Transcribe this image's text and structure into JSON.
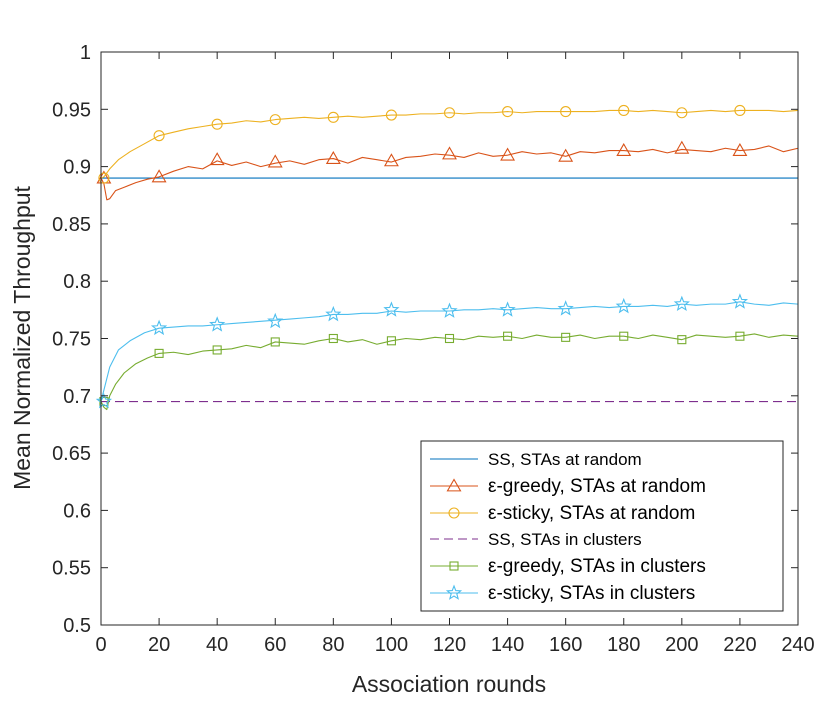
{
  "chart_data": {
    "type": "line",
    "title": "",
    "xlabel": "Association rounds",
    "ylabel": "Mean Normalized Throughput",
    "xlim": [
      0,
      240
    ],
    "ylim": [
      0.5,
      1
    ],
    "xticks": [
      0,
      20,
      40,
      60,
      80,
      100,
      120,
      140,
      160,
      180,
      200,
      220,
      240
    ],
    "yticks": [
      0.5,
      0.55,
      0.6,
      0.65,
      0.7,
      0.75,
      0.8,
      0.85,
      0.9,
      0.95,
      1
    ],
    "ytick_labels": [
      "0.5",
      "0.55",
      "0.6",
      "0.65",
      "0.7",
      "0.75",
      "0.8",
      "0.85",
      "0.9",
      "0.95",
      "1"
    ],
    "grid": false,
    "legend_position": "bottom-right",
    "series": [
      {
        "name": "SS, STAs at random",
        "color": "#0072bd",
        "dash": "solid",
        "marker": "none",
        "x": [
          0,
          240
        ],
        "y": [
          0.89,
          0.89
        ]
      },
      {
        "name": "ε-greedy, STAs at random",
        "color": "#d95319",
        "dash": "solid",
        "marker": "triangle",
        "x": [
          0,
          1,
          2,
          3,
          5,
          8,
          12,
          16,
          20,
          25,
          30,
          35,
          40,
          45,
          50,
          55,
          60,
          65,
          70,
          75,
          80,
          85,
          90,
          95,
          100,
          105,
          110,
          115,
          120,
          125,
          130,
          135,
          140,
          145,
          150,
          155,
          160,
          165,
          170,
          175,
          180,
          185,
          190,
          195,
          200,
          205,
          210,
          215,
          220,
          225,
          230,
          235,
          240
        ],
        "y": [
          0.89,
          0.885,
          0.871,
          0.872,
          0.879,
          0.882,
          0.886,
          0.889,
          0.891,
          0.896,
          0.9,
          0.898,
          0.905,
          0.901,
          0.904,
          0.9,
          0.903,
          0.905,
          0.902,
          0.906,
          0.907,
          0.903,
          0.908,
          0.906,
          0.904,
          0.908,
          0.909,
          0.911,
          0.91,
          0.908,
          0.912,
          0.909,
          0.91,
          0.913,
          0.911,
          0.912,
          0.909,
          0.913,
          0.912,
          0.914,
          0.914,
          0.913,
          0.915,
          0.912,
          0.915,
          0.914,
          0.913,
          0.916,
          0.914,
          0.915,
          0.918,
          0.913,
          0.916
        ],
        "marker_x": [
          1,
          20,
          40,
          60,
          80,
          100,
          120,
          140,
          160,
          180,
          200,
          220
        ],
        "marker_y": [
          0.89,
          0.891,
          0.906,
          0.904,
          0.907,
          0.905,
          0.911,
          0.91,
          0.909,
          0.914,
          0.916,
          0.914
        ]
      },
      {
        "name": "ε-sticky, STAs at random",
        "color": "#edb120",
        "dash": "solid",
        "marker": "circle",
        "x": [
          0,
          1,
          3,
          6,
          10,
          15,
          20,
          25,
          30,
          35,
          40,
          45,
          50,
          55,
          60,
          65,
          70,
          75,
          80,
          85,
          90,
          95,
          100,
          105,
          110,
          115,
          120,
          125,
          130,
          135,
          140,
          145,
          150,
          155,
          160,
          165,
          170,
          175,
          180,
          185,
          190,
          195,
          200,
          205,
          210,
          215,
          220,
          225,
          230,
          235,
          240
        ],
        "y": [
          0.89,
          0.891,
          0.898,
          0.906,
          0.913,
          0.92,
          0.927,
          0.93,
          0.933,
          0.935,
          0.937,
          0.938,
          0.94,
          0.939,
          0.941,
          0.942,
          0.943,
          0.942,
          0.943,
          0.944,
          0.943,
          0.944,
          0.945,
          0.945,
          0.946,
          0.946,
          0.947,
          0.946,
          0.947,
          0.947,
          0.948,
          0.947,
          0.948,
          0.948,
          0.948,
          0.948,
          0.948,
          0.949,
          0.949,
          0.948,
          0.949,
          0.948,
          0.947,
          0.948,
          0.949,
          0.948,
          0.949,
          0.949,
          0.949,
          0.948,
          0.949
        ],
        "marker_x": [
          1,
          20,
          40,
          60,
          80,
          100,
          120,
          140,
          160,
          180,
          200,
          220
        ],
        "marker_y": [
          0.89,
          0.927,
          0.937,
          0.941,
          0.943,
          0.945,
          0.947,
          0.948,
          0.948,
          0.949,
          0.947,
          0.949
        ]
      },
      {
        "name": "SS, STAs in clusters",
        "color": "#7e2f8e",
        "dash": "dashed",
        "marker": "none",
        "x": [
          0,
          240
        ],
        "y": [
          0.695,
          0.695
        ]
      },
      {
        "name": "ε-greedy, STAs in clusters",
        "color": "#77ac30",
        "dash": "solid",
        "marker": "square",
        "x": [
          0,
          1,
          2,
          3,
          5,
          8,
          12,
          16,
          20,
          25,
          30,
          35,
          40,
          45,
          50,
          55,
          60,
          65,
          70,
          75,
          80,
          85,
          90,
          95,
          100,
          105,
          110,
          115,
          120,
          125,
          130,
          135,
          140,
          145,
          150,
          155,
          160,
          165,
          170,
          175,
          180,
          185,
          190,
          195,
          200,
          205,
          210,
          215,
          220,
          225,
          230,
          235,
          240
        ],
        "y": [
          0.695,
          0.69,
          0.688,
          0.7,
          0.71,
          0.72,
          0.728,
          0.733,
          0.737,
          0.738,
          0.736,
          0.739,
          0.74,
          0.741,
          0.744,
          0.742,
          0.747,
          0.746,
          0.745,
          0.748,
          0.75,
          0.747,
          0.749,
          0.745,
          0.748,
          0.75,
          0.749,
          0.751,
          0.75,
          0.749,
          0.752,
          0.751,
          0.752,
          0.75,
          0.753,
          0.751,
          0.751,
          0.753,
          0.75,
          0.752,
          0.752,
          0.75,
          0.753,
          0.751,
          0.749,
          0.753,
          0.752,
          0.751,
          0.752,
          0.754,
          0.751,
          0.753,
          0.752
        ],
        "marker_x": [
          1,
          20,
          40,
          60,
          80,
          100,
          120,
          140,
          160,
          180,
          200,
          220
        ],
        "marker_y": [
          0.695,
          0.737,
          0.74,
          0.747,
          0.75,
          0.748,
          0.75,
          0.752,
          0.751,
          0.752,
          0.749,
          0.752
        ]
      },
      {
        "name": "ε-sticky, STAs in clusters",
        "color": "#4dbeee",
        "dash": "solid",
        "marker": "star",
        "x": [
          0,
          1,
          3,
          6,
          10,
          15,
          20,
          25,
          30,
          35,
          40,
          45,
          50,
          55,
          60,
          65,
          70,
          75,
          80,
          85,
          90,
          95,
          100,
          105,
          110,
          115,
          120,
          125,
          130,
          135,
          140,
          145,
          150,
          155,
          160,
          165,
          170,
          175,
          180,
          185,
          190,
          195,
          200,
          205,
          210,
          215,
          220,
          225,
          230,
          235,
          240
        ],
        "y": [
          0.695,
          0.705,
          0.725,
          0.74,
          0.748,
          0.755,
          0.759,
          0.76,
          0.761,
          0.761,
          0.762,
          0.763,
          0.764,
          0.765,
          0.766,
          0.767,
          0.768,
          0.769,
          0.771,
          0.771,
          0.772,
          0.772,
          0.774,
          0.773,
          0.774,
          0.774,
          0.774,
          0.775,
          0.775,
          0.776,
          0.775,
          0.776,
          0.777,
          0.776,
          0.776,
          0.777,
          0.778,
          0.777,
          0.778,
          0.778,
          0.779,
          0.778,
          0.78,
          0.779,
          0.78,
          0.78,
          0.782,
          0.78,
          0.779,
          0.781,
          0.78
        ],
        "marker_x": [
          1,
          20,
          40,
          60,
          80,
          100,
          120,
          140,
          160,
          180,
          200,
          220
        ],
        "marker_y": [
          0.695,
          0.759,
          0.762,
          0.765,
          0.771,
          0.775,
          0.774,
          0.775,
          0.776,
          0.778,
          0.78,
          0.782
        ]
      }
    ]
  }
}
